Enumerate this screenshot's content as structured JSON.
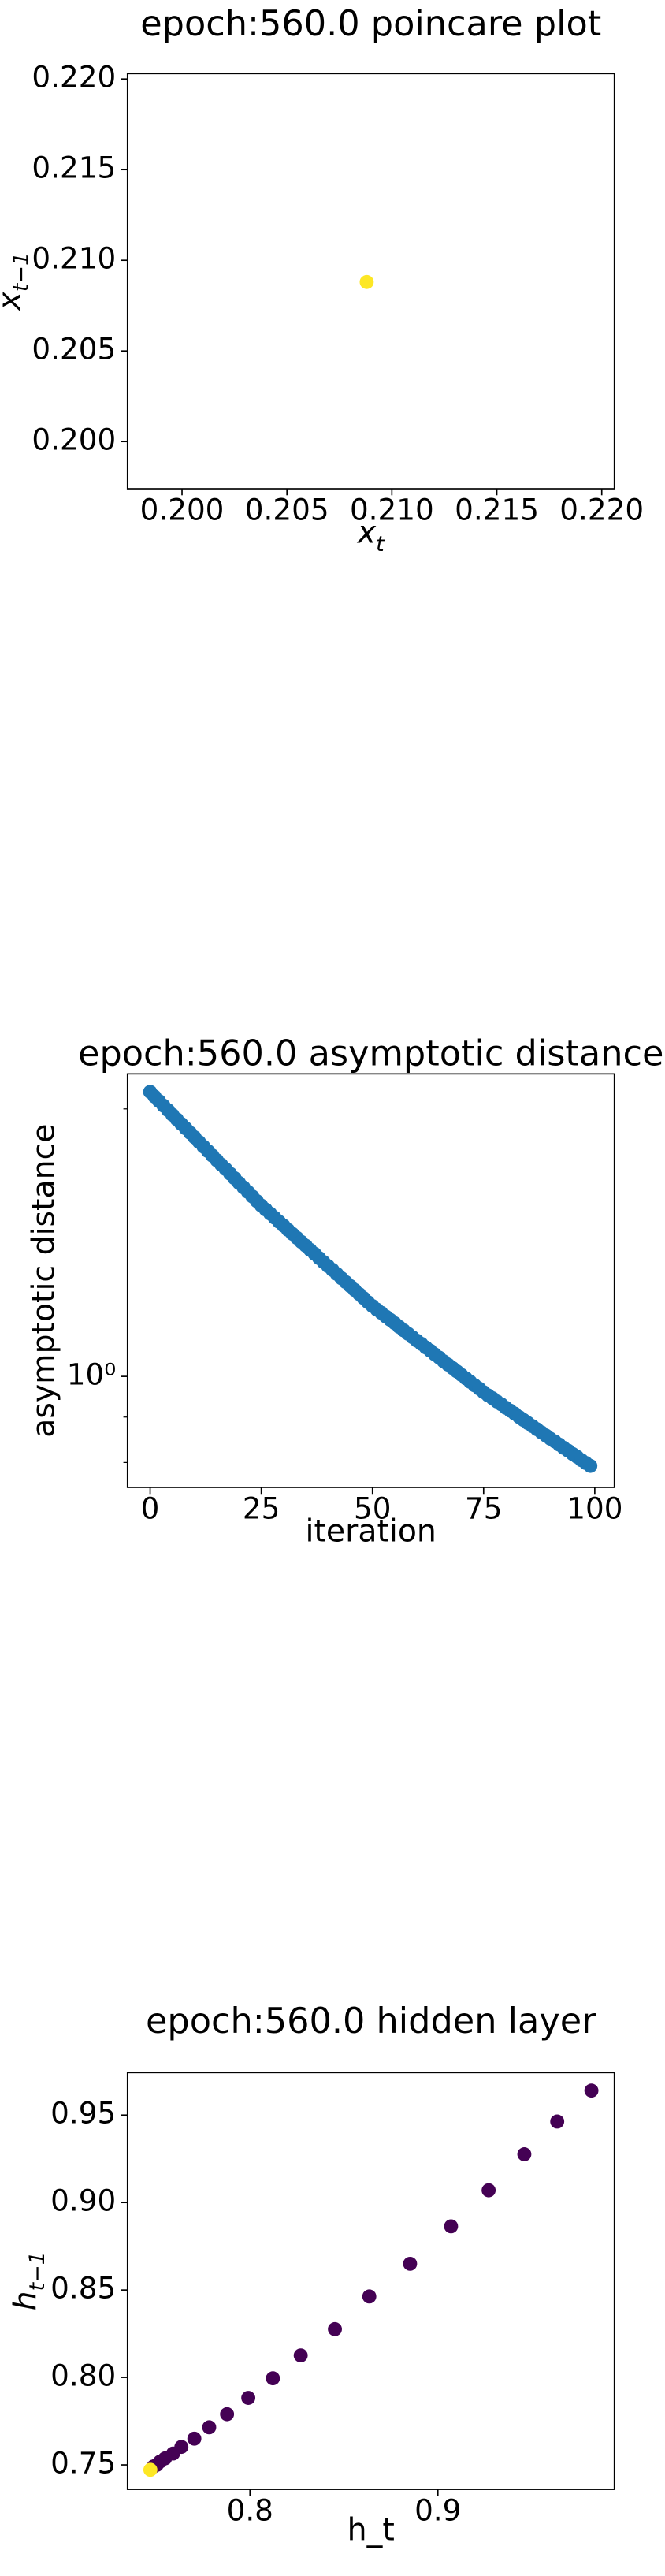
{
  "chart_data": [
    {
      "type": "scatter",
      "title": "epoch:560.0 poincare plot",
      "x_label": {
        "base": "x",
        "sub": "t"
      },
      "y_label": {
        "base": "x",
        "sub": "t−1"
      },
      "x": [
        0.2088
      ],
      "y": [
        0.2088
      ],
      "colors": [
        "#fde725"
      ],
      "xlim": [
        0.1974,
        0.2206
      ],
      "ylim": [
        0.1974,
        0.2203
      ],
      "xticks": [
        {
          "value": 0.2,
          "label": "0.200"
        },
        {
          "value": 0.205,
          "label": "0.205"
        },
        {
          "value": 0.21,
          "label": "0.210"
        },
        {
          "value": 0.215,
          "label": "0.215"
        },
        {
          "value": 0.22,
          "label": "0.220"
        }
      ],
      "yticks": [
        {
          "value": 0.2,
          "label": "0.200"
        },
        {
          "value": 0.205,
          "label": "0.205"
        },
        {
          "value": 0.21,
          "label": "0.210"
        },
        {
          "value": 0.215,
          "label": "0.215"
        },
        {
          "value": 0.22,
          "label": "0.220"
        }
      ]
    },
    {
      "type": "scatter",
      "title": "epoch:560.0 asymptotic distance",
      "x_label": "iteration",
      "y_label": "asymptotic distance",
      "ylog": true,
      "color": "#1f77b4",
      "x": [
        0,
        1,
        2,
        3,
        4,
        5,
        6,
        7,
        8,
        9,
        10,
        11,
        12,
        13,
        14,
        15,
        16,
        17,
        18,
        19,
        20,
        21,
        22,
        23,
        24,
        25,
        26,
        27,
        28,
        29,
        30,
        31,
        32,
        33,
        34,
        35,
        36,
        37,
        38,
        39,
        40,
        41,
        42,
        43,
        44,
        45,
        46,
        47,
        48,
        49,
        50,
        51,
        52,
        53,
        54,
        55,
        56,
        57,
        58,
        59,
        60,
        61,
        62,
        63,
        64,
        65,
        66,
        67,
        68,
        69,
        70,
        71,
        72,
        73,
        74,
        75,
        76,
        77,
        78,
        79,
        80,
        81,
        82,
        83,
        84,
        85,
        86,
        87,
        88,
        89,
        90,
        91,
        92,
        93,
        94,
        95,
        96,
        97,
        98,
        99
      ],
      "y": [
        2.09,
        2.065,
        2.041,
        2.017,
        1.994,
        1.97,
        1.947,
        1.924,
        1.902,
        1.88,
        1.858,
        1.836,
        1.814,
        1.793,
        1.772,
        1.751,
        1.731,
        1.711,
        1.691,
        1.671,
        1.651,
        1.632,
        1.613,
        1.594,
        1.575,
        1.557,
        1.541,
        1.525,
        1.509,
        1.493,
        1.478,
        1.462,
        1.447,
        1.432,
        1.417,
        1.403,
        1.388,
        1.374,
        1.359,
        1.345,
        1.331,
        1.318,
        1.304,
        1.29,
        1.277,
        1.264,
        1.251,
        1.238,
        1.225,
        1.212,
        1.2,
        1.189,
        1.179,
        1.168,
        1.158,
        1.148,
        1.137,
        1.127,
        1.117,
        1.107,
        1.097,
        1.088,
        1.078,
        1.069,
        1.059,
        1.05,
        1.04,
        1.031,
        1.022,
        1.013,
        1.004,
        0.995,
        0.986,
        0.977,
        0.969,
        0.96,
        0.952,
        0.945,
        0.937,
        0.93,
        0.922,
        0.915,
        0.908,
        0.9,
        0.893,
        0.886,
        0.879,
        0.872,
        0.865,
        0.858,
        0.851,
        0.845,
        0.838,
        0.831,
        0.825,
        0.818,
        0.812,
        0.805,
        0.799,
        0.793
      ],
      "xlim": [
        -5.1,
        104.4
      ],
      "ylim": [
        0.75,
        2.19
      ],
      "xticks": [
        0,
        25,
        50,
        75,
        100
      ],
      "yticks": [
        {
          "value": 1,
          "label": "10⁰"
        }
      ],
      "yminorticks": [
        0.8,
        0.9,
        2
      ]
    },
    {
      "type": "scatter",
      "title": "epoch:560.0 hidden layer",
      "x_label": "h_t",
      "y_label": {
        "base": "h",
        "sub": "t−1"
      },
      "x": [
        0.9817,
        0.9635,
        0.946,
        0.927,
        0.907,
        0.8852,
        0.8635,
        0.8452,
        0.827,
        0.8122,
        0.7991,
        0.7878,
        0.7783,
        0.7704,
        0.7635,
        0.7591,
        0.7548,
        0.7522,
        0.7504,
        0.7487,
        0.747
      ],
      "y": [
        0.964,
        0.9463,
        0.9276,
        0.907,
        0.8864,
        0.865,
        0.8463,
        0.8276,
        0.8126,
        0.7995,
        0.7883,
        0.779,
        0.7715,
        0.765,
        0.7603,
        0.7565,
        0.7537,
        0.7519,
        0.75,
        0.7491,
        0.7472
      ],
      "colors": [
        "#440154",
        "#440154",
        "#440154",
        "#440154",
        "#440154",
        "#440154",
        "#440154",
        "#440154",
        "#440154",
        "#440154",
        "#440154",
        "#440154",
        "#440154",
        "#440154",
        "#440154",
        "#440154",
        "#440154",
        "#440154",
        "#440154",
        "#440154",
        "#fde725"
      ],
      "xlim": [
        0.7348,
        0.9939
      ],
      "ylim": [
        0.736,
        0.9743
      ],
      "xticks": [
        0.8,
        0.9
      ],
      "yticks": [
        0.75,
        {
          "value": 0.8,
          "label": "0.80"
        },
        0.85,
        {
          "value": 0.9,
          "label": "0.90"
        },
        0.95
      ]
    }
  ]
}
